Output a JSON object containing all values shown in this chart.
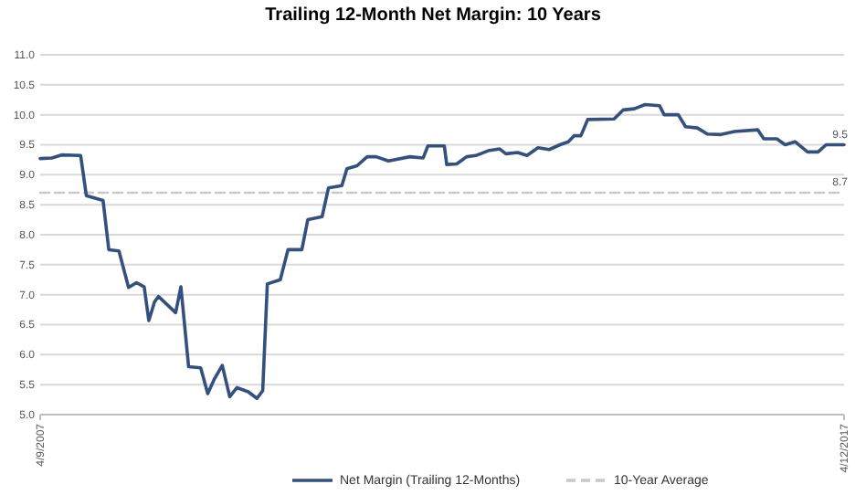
{
  "chart_data": {
    "type": "line",
    "title": "Trailing 12-Month Net Margin: 10 Years",
    "xlim": [
      "2007-04-09",
      "2017-04-12"
    ],
    "xticks": [
      {
        "value": "2007-04-09",
        "label": "4/9/2007"
      },
      {
        "value": "2017-04-12",
        "label": "4/12/2017"
      }
    ],
    "ylim": [
      5,
      11
    ],
    "yticks": [
      {
        "value": 5,
        "label": "5.0"
      },
      {
        "value": 5.5,
        "label": "5.5"
      },
      {
        "value": 6,
        "label": "6.0"
      },
      {
        "value": 6.5,
        "label": "6.5"
      },
      {
        "value": 7,
        "label": "7.0"
      },
      {
        "value": 7.5,
        "label": "7.5"
      },
      {
        "value": 8,
        "label": "8.0"
      },
      {
        "value": 8.5,
        "label": "8.5"
      },
      {
        "value": 9,
        "label": "9.0"
      },
      {
        "value": 9.5,
        "label": "9.5"
      },
      {
        "value": 10,
        "label": "10.0"
      },
      {
        "value": 10.5,
        "label": "10.5"
      },
      {
        "value": 11,
        "label": "11.0"
      }
    ],
    "grid": "y",
    "legend": "bottom",
    "marker": "none",
    "series": [
      {
        "name": "Net Margin (Trailing 12-Months)",
        "color": "#34507f",
        "line_style": "solid",
        "x": [
          "2007-04-09",
          "2007-06-01",
          "2007-07-15",
          "2007-10-10",
          "2007-11-05",
          "2008-01-20",
          "2008-02-15",
          "2008-04-01",
          "2008-05-15",
          "2008-06-20",
          "2008-07-25",
          "2008-08-15",
          "2008-09-10",
          "2008-09-28",
          "2008-12-15",
          "2009-01-08",
          "2009-02-12",
          "2009-04-08",
          "2009-05-10",
          "2009-06-10",
          "2009-07-15",
          "2009-08-18",
          "2009-09-20",
          "2009-11-10",
          "2009-12-20",
          "2010-01-15",
          "2010-02-05",
          "2010-04-05",
          "2010-05-10",
          "2010-07-12",
          "2010-08-08",
          "2010-10-12",
          "2010-11-10",
          "2011-01-10",
          "2011-02-02",
          "2011-03-20",
          "2011-05-05",
          "2011-06-15",
          "2011-08-10",
          "2011-11-15",
          "2012-01-15",
          "2012-02-05",
          "2012-04-20",
          "2012-05-01",
          "2012-06-15",
          "2012-07-30",
          "2012-09-10",
          "2012-11-05",
          "2012-12-28",
          "2013-01-25",
          "2013-03-20",
          "2013-05-01",
          "2013-06-20",
          "2013-08-10",
          "2013-09-28",
          "2013-11-05",
          "2013-12-01",
          "2014-01-01",
          "2014-02-01",
          "2014-06-01",
          "2014-07-12",
          "2014-09-01",
          "2014-10-20",
          "2014-12-25",
          "2015-01-15",
          "2015-03-20",
          "2015-04-22",
          "2015-06-15",
          "2015-07-30",
          "2015-09-30",
          "2015-12-01",
          "2016-03-15",
          "2016-04-12",
          "2016-06-10",
          "2016-07-18",
          "2016-09-01",
          "2016-10-28",
          "2016-12-15",
          "2017-01-20",
          "2017-04-12"
        ],
        "values": [
          9.27,
          9.28,
          9.33,
          9.32,
          8.65,
          8.57,
          7.75,
          7.73,
          7.12,
          7.2,
          7.13,
          6.57,
          6.88,
          6.97,
          6.7,
          7.13,
          5.8,
          5.78,
          5.35,
          5.6,
          5.82,
          5.3,
          5.45,
          5.38,
          5.27,
          5.4,
          7.18,
          7.25,
          7.75,
          7.75,
          8.25,
          8.3,
          8.78,
          8.82,
          9.1,
          9.15,
          9.3,
          9.3,
          9.23,
          9.3,
          9.28,
          9.48,
          9.48,
          9.17,
          9.18,
          9.3,
          9.32,
          9.4,
          9.43,
          9.35,
          9.37,
          9.32,
          9.45,
          9.42,
          9.5,
          9.55,
          9.65,
          9.65,
          9.92,
          9.93,
          10.08,
          10.1,
          10.17,
          10.15,
          10.0,
          10.0,
          9.8,
          9.78,
          9.68,
          9.67,
          9.72,
          9.75,
          9.6,
          9.6,
          9.5,
          9.55,
          9.38,
          9.38,
          9.5,
          9.5
        ]
      },
      {
        "name": "10-Year Average",
        "color": "#c8c8c8",
        "line_style": "dashed",
        "x": [
          "2007-04-09",
          "2017-04-12"
        ],
        "values": [
          8.7,
          8.7
        ]
      }
    ],
    "annotations": [
      {
        "text": "9.5",
        "x": "2017-04-12",
        "y": 9.5
      },
      {
        "text": "8.7",
        "x": "2017-04-12",
        "y": 8.7
      }
    ]
  }
}
